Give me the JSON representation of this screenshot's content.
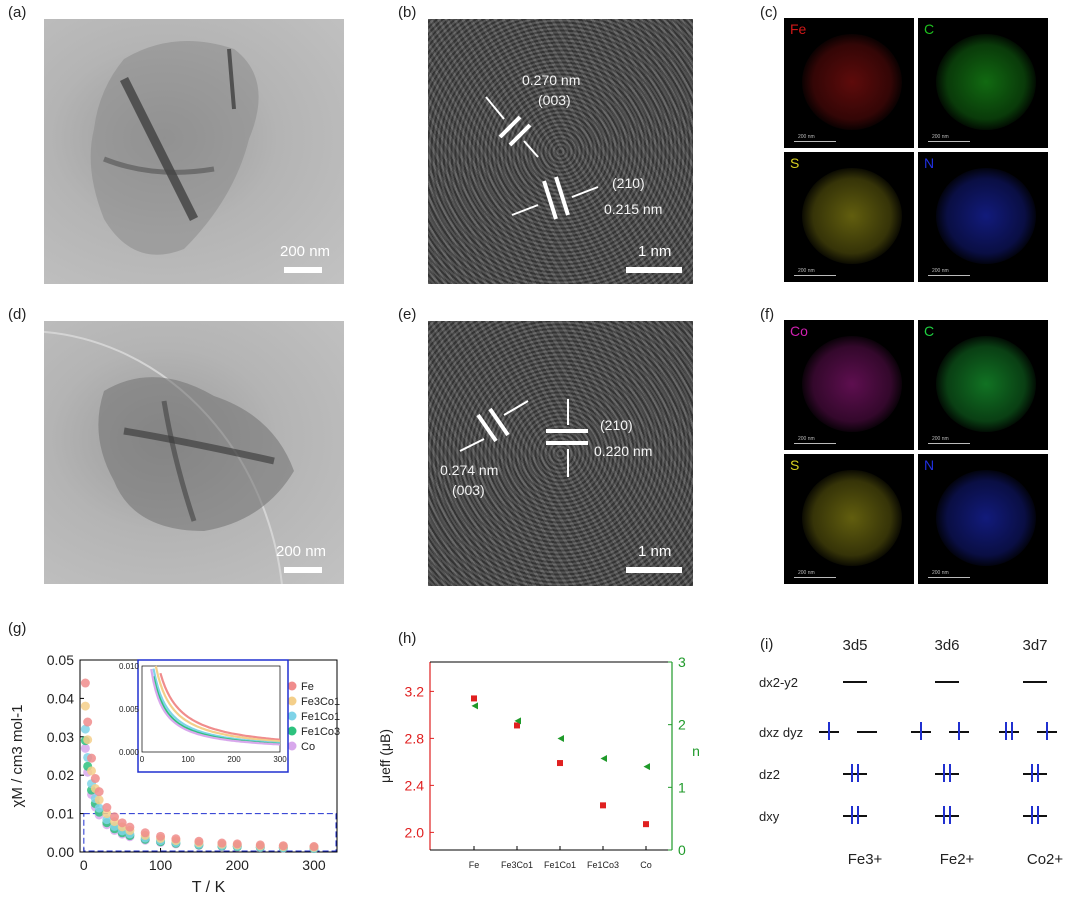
{
  "panels": {
    "a": {
      "label": "(a)",
      "scale": "200 nm"
    },
    "b": {
      "label": "(b)",
      "scale": "1 nm",
      "d1": "0.270 nm",
      "p1": "(003)",
      "p2": "(210)",
      "d2": "0.215 nm"
    },
    "c": {
      "label": "(c)",
      "maps": [
        {
          "element": "Fe",
          "color": "#d01818",
          "scale": "200 nm"
        },
        {
          "element": "C",
          "color": "#1fc01f",
          "scale": "200 nm"
        },
        {
          "element": "S",
          "color": "#d8d020",
          "scale": "200 nm"
        },
        {
          "element": "N",
          "color": "#2030e0",
          "scale": "200 nm"
        }
      ]
    },
    "d": {
      "label": "(d)",
      "scale": "200 nm"
    },
    "e": {
      "label": "(e)",
      "scale": "1 nm",
      "d1": "0.274 nm",
      "p1": "(003)",
      "p2": "(210)",
      "d2": "0.220 nm"
    },
    "f": {
      "label": "(f)",
      "maps": [
        {
          "element": "Co",
          "color": "#d020b0",
          "scale": "200 nm"
        },
        {
          "element": "C",
          "color": "#1fd040",
          "scale": "200 nm"
        },
        {
          "element": "S",
          "color": "#d8d020",
          "scale": "200 nm"
        },
        {
          "element": "N",
          "color": "#2030e0",
          "scale": "200 nm"
        }
      ]
    },
    "g": {
      "label": "(g)"
    },
    "h": {
      "label": "(h)"
    },
    "i": {
      "label": "(i)",
      "configs": [
        "3d5",
        "3d6",
        "3d7"
      ],
      "orbitals": [
        "dx2-y2",
        "dxz dyz",
        "dz2",
        "dxy"
      ],
      "ions": [
        "Fe3+",
        "Fe2+",
        "Co2+"
      ]
    }
  },
  "chart_data": [
    {
      "type": "scatter",
      "panel": "g",
      "xlabel": "T / K",
      "ylabel": "χM / cm3 mol-1",
      "xlim": [
        -5,
        330
      ],
      "ylim": [
        0,
        0.05
      ],
      "xticks": [
        0,
        100,
        200,
        300
      ],
      "yticks": [
        0.0,
        0.01,
        0.02,
        0.03,
        0.04,
        0.05
      ],
      "legend_position": "right",
      "series": [
        {
          "name": "Fe",
          "color": "#f08c8c",
          "C": 0.44
        },
        {
          "name": "Fe3Co1",
          "color": "#f4cf8a",
          "C": 0.38
        },
        {
          "name": "Fe1Co1",
          "color": "#7fd3e8",
          "C": 0.32
        },
        {
          "name": "Fe1Co3",
          "color": "#2ec27e",
          "C": 0.29
        },
        {
          "name": "Co",
          "color": "#d8a8ec",
          "C": 0.27
        }
      ],
      "T": [
        2,
        5,
        10,
        15,
        20,
        30,
        40,
        50,
        60,
        80,
        100,
        120,
        150,
        180,
        200,
        230,
        260,
        300
      ],
      "inset": {
        "xlim": [
          0,
          300
        ],
        "ylim": [
          0,
          0.01
        ],
        "xticks": [
          0,
          100,
          200,
          300
        ],
        "yticks": [
          0.0,
          0.005,
          0.01
        ]
      }
    },
    {
      "type": "scatter",
      "panel": "h",
      "categories": [
        "Fe",
        "Fe3Co1",
        "Fe1Co1",
        "Fe1Co3",
        "Co"
      ],
      "ylabel": "μeff (μB)",
      "y2label": "n",
      "ylim": [
        1.85,
        3.45
      ],
      "y2lim": [
        0,
        3
      ],
      "yticks": [
        2.0,
        2.4,
        2.8,
        3.2
      ],
      "y2ticks": [
        0,
        1,
        2,
        3
      ],
      "series": [
        {
          "name": "μeff",
          "axis": "left",
          "marker": "square",
          "color": "#e02020",
          "values": [
            3.14,
            2.91,
            2.59,
            2.23,
            2.07
          ]
        },
        {
          "name": "n",
          "axis": "right",
          "marker": "triangle",
          "color": "#1f9a2a",
          "values": [
            2.3,
            2.06,
            1.78,
            1.46,
            1.33
          ]
        }
      ]
    }
  ]
}
